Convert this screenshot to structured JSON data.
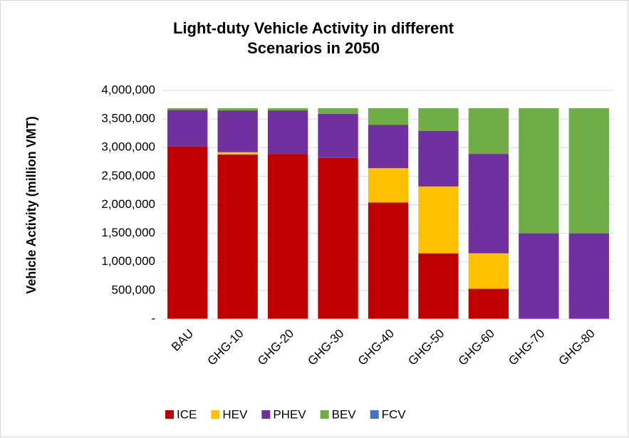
{
  "chart_data": {
    "type": "stacked_bar",
    "title": "Light-duty Vehicle Activity in different Scenarios in 2050",
    "y_label": "Vehicle Activity (million VMT)",
    "categories": [
      "BAU",
      "GHG-10",
      "GHG-20",
      "GHG-30",
      "GHG-40",
      "GHG-50",
      "GHG-60",
      "GHG-70",
      "GHG-80"
    ],
    "series": [
      {
        "name": "ICE",
        "color": "#c00000",
        "values": [
          3020000,
          2880000,
          2890000,
          2820000,
          2040000,
          1150000,
          530000,
          0,
          0
        ]
      },
      {
        "name": "HEV",
        "color": "#ffc000",
        "values": [
          0,
          40000,
          0,
          0,
          600000,
          1170000,
          620000,
          0,
          0
        ]
      },
      {
        "name": "PHEV",
        "color": "#7030a0",
        "values": [
          640000,
          730000,
          760000,
          770000,
          760000,
          970000,
          1740000,
          1500000,
          1500000
        ]
      },
      {
        "name": "BEV",
        "color": "#70ad47",
        "values": [
          30000,
          40000,
          40000,
          100000,
          290000,
          400000,
          800000,
          2190000,
          2190000
        ]
      },
      {
        "name": "FCV",
        "color": "#4472c4",
        "values": [
          0,
          0,
          0,
          0,
          0,
          0,
          0,
          0,
          0
        ]
      }
    ],
    "ylim": [
      0,
      4000000
    ],
    "yticks": [
      {
        "value": 0,
        "label": "-"
      },
      {
        "value": 500000,
        "label": "500,000"
      },
      {
        "value": 1000000,
        "label": "1,000,000"
      },
      {
        "value": 1500000,
        "label": "1,500,000"
      },
      {
        "value": 2000000,
        "label": "2,000,000"
      },
      {
        "value": 2500000,
        "label": "2,500,000"
      },
      {
        "value": 3000000,
        "label": "3,000,000"
      },
      {
        "value": 3500000,
        "label": "3,500,000"
      },
      {
        "value": 4000000,
        "label": "4,000,000"
      }
    ],
    "grid": true,
    "legend": "bottom"
  }
}
